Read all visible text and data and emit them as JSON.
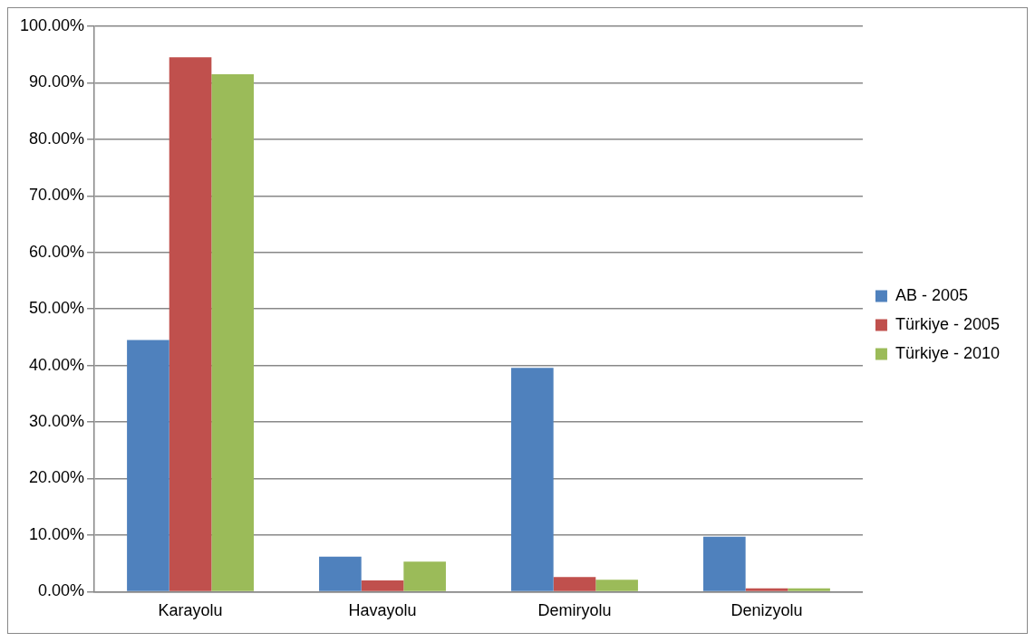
{
  "chart_data": {
    "type": "bar",
    "categories": [
      "Karayolu",
      "Havayolu",
      "Demiryolu",
      "Denizyolu"
    ],
    "series": [
      {
        "name": "AB - 2005",
        "color": "#4f81bd",
        "values": [
          44.5,
          6.2,
          39.6,
          9.7
        ]
      },
      {
        "name": "Türkiye - 2005",
        "color": "#c0504d",
        "values": [
          94.5,
          2.0,
          2.6,
          0.6
        ]
      },
      {
        "name": "Türkiye - 2010",
        "color": "#9bbb59",
        "values": [
          91.5,
          5.3,
          2.1,
          0.6
        ]
      }
    ],
    "ylim": [
      0,
      100
    ],
    "yticks": [
      {
        "value": 0,
        "label": "0.00%"
      },
      {
        "value": 10,
        "label": "10.00%"
      },
      {
        "value": 20,
        "label": "20.00%"
      },
      {
        "value": 30,
        "label": "30.00%"
      },
      {
        "value": 40,
        "label": "40.00%"
      },
      {
        "value": 50,
        "label": "50.00%"
      },
      {
        "value": 60,
        "label": "60.00%"
      },
      {
        "value": 70,
        "label": "70.00%"
      },
      {
        "value": 80,
        "label": "80.00%"
      },
      {
        "value": 90,
        "label": "90.00%"
      },
      {
        "value": 100,
        "label": "100.00%"
      }
    ],
    "grid": "y",
    "legend": "right"
  }
}
